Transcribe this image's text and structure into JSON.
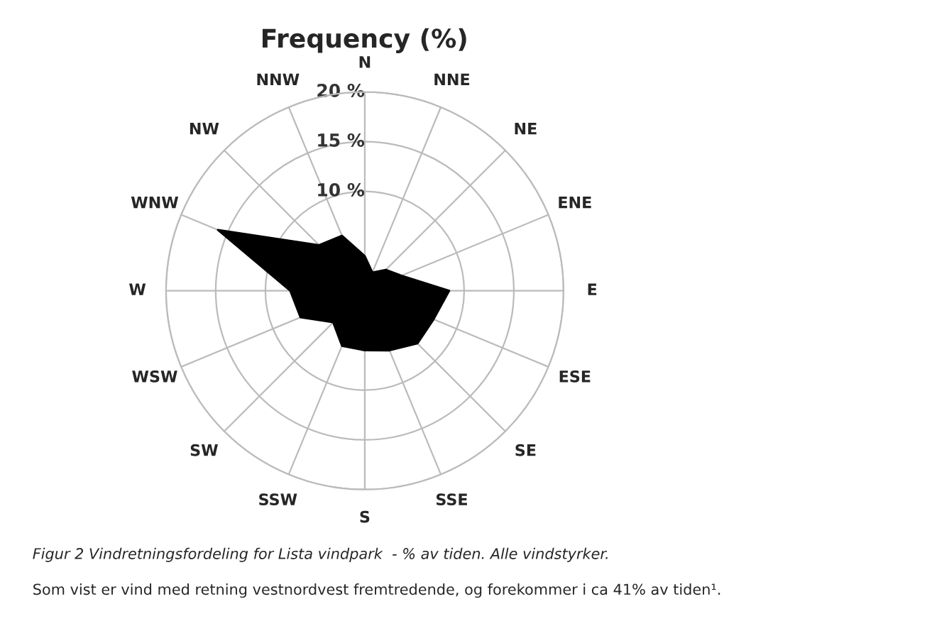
{
  "chart_data": {
    "type": "radar",
    "title": "Frequency (%)",
    "categories": [
      "N",
      "NNE",
      "NE",
      "ENE",
      "E",
      "ESE",
      "SE",
      "SSE",
      "S",
      "SSW",
      "SW",
      "WSW",
      "W",
      "WNW",
      "NW",
      "NNW"
    ],
    "series": [
      {
        "color": "#000000",
        "values": [
          3.5,
          2,
          3,
          4,
          8.5,
          7.5,
          7.5,
          6.5,
          6,
          6,
          4.5,
          7,
          7.5,
          16,
          6.5,
          6
        ]
      }
    ],
    "ylim": [
      0,
      20
    ],
    "yticks": [
      {
        "value": 10,
        "label": "10 %"
      },
      {
        "value": 15,
        "label": "15 %"
      },
      {
        "value": 20,
        "label": "20 %"
      }
    ],
    "grid": true,
    "annotations": [
      "Figur 2 Vindretningsfordeling for Lista vindpark  - % av tiden. Alle vindstyrker.",
      "Som vist er vind med retning vestnordvest fremtredende, og forekommer i ca 41% av tiden¹."
    ]
  }
}
